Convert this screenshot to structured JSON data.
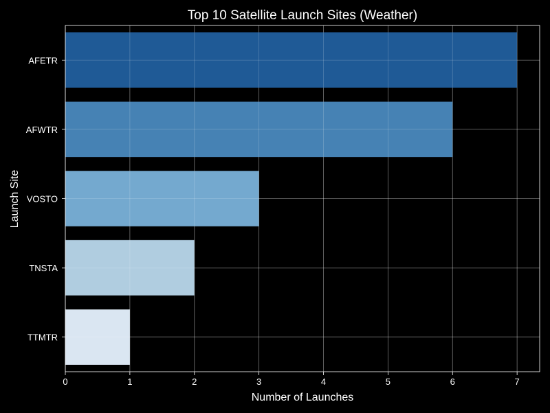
{
  "chart_data": {
    "type": "bar",
    "orientation": "horizontal",
    "title": "Top 10 Satellite Launch Sites (Weather)",
    "xlabel": "Number of Launches",
    "ylabel": "Launch Site",
    "categories": [
      "AFETR",
      "AFWTR",
      "VOSTO",
      "TNSTA",
      "TTMTR"
    ],
    "values": [
      7,
      6,
      3,
      2,
      1
    ],
    "xlim": [
      0,
      7.35
    ],
    "xticks": [
      "0",
      "1",
      "2",
      "3",
      "4",
      "5",
      "6",
      "7"
    ],
    "grid": true,
    "colors": [
      "#1f5a96",
      "#4682b4",
      "#74a9cf",
      "#b0cde0",
      "#dae6f2"
    ],
    "background": "#000000",
    "text_color": "#ffffff"
  }
}
